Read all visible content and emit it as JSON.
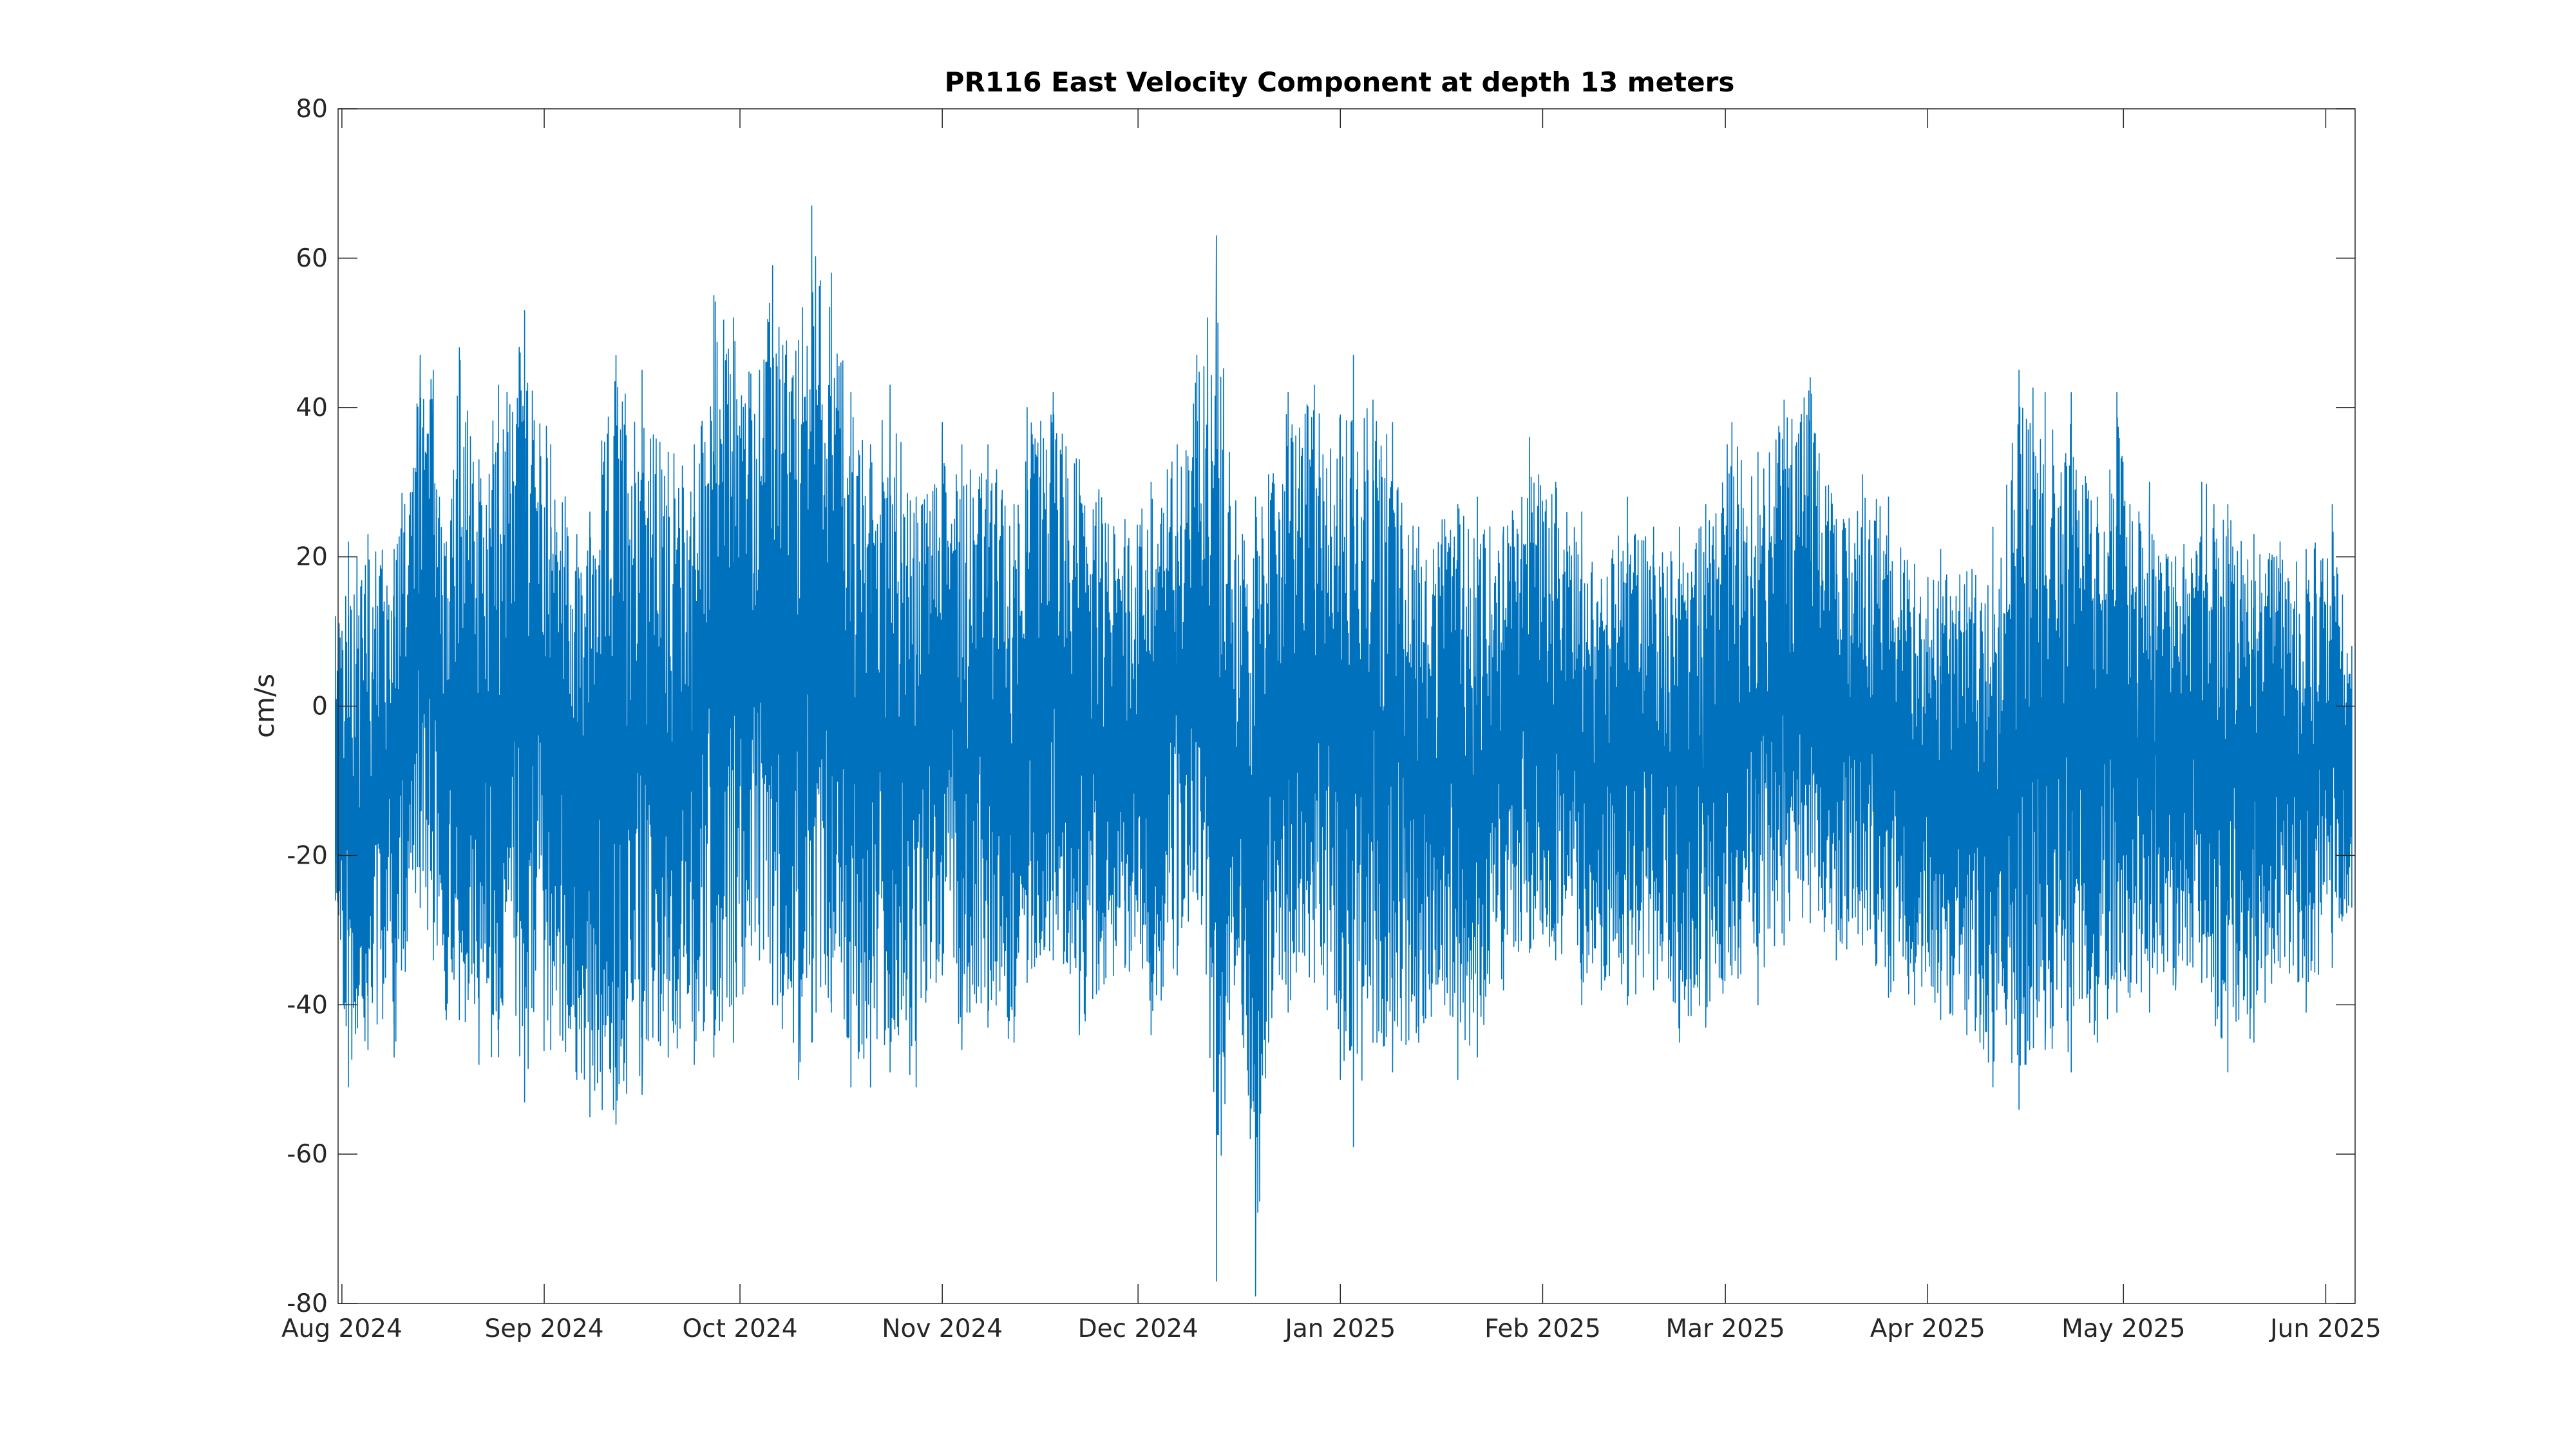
{
  "chart_data": {
    "type": "line",
    "title": "PR116 East Velocity Component at depth 13 meters",
    "xlabel": "",
    "ylabel": "cm/s",
    "ylim": [
      -80,
      80
    ],
    "xlim": [
      "2024-07-31T10:00",
      "2025-06-05T12:00"
    ],
    "x_ticks": [
      {
        "date": "2024-08-01",
        "label": "Aug 2024"
      },
      {
        "date": "2024-09-01",
        "label": "Sep 2024"
      },
      {
        "date": "2024-10-01",
        "label": "Oct 2024"
      },
      {
        "date": "2024-11-01",
        "label": "Nov 2024"
      },
      {
        "date": "2024-12-01",
        "label": "Dec 2024"
      },
      {
        "date": "2025-01-01",
        "label": "Jan 2025"
      },
      {
        "date": "2025-02-01",
        "label": "Feb 2025"
      },
      {
        "date": "2025-03-01",
        "label": "Mar 2025"
      },
      {
        "date": "2025-04-01",
        "label": "Apr 2025"
      },
      {
        "date": "2025-05-01",
        "label": "May 2025"
      },
      {
        "date": "2025-06-01",
        "label": "Jun 2025"
      }
    ],
    "y_ticks": [
      -80,
      -60,
      -40,
      -20,
      0,
      20,
      40,
      60,
      80
    ],
    "grid": false,
    "series": [
      {
        "color": "#0072BD",
        "x": [
          "2024-07-31",
          "2024-08-02",
          "2024-08-05",
          "2024-08-09",
          "2024-08-13",
          "2024-08-15",
          "2024-08-17",
          "2024-08-19",
          "2024-08-22",
          "2024-08-25",
          "2024-08-29",
          "2024-09-02",
          "2024-09-06",
          "2024-09-08",
          "2024-09-12",
          "2024-09-16",
          "2024-09-20",
          "2024-09-24",
          "2024-09-27",
          "2024-09-30",
          "2024-10-04",
          "2024-10-06",
          "2024-10-10",
          "2024-10-12",
          "2024-10-15",
          "2024-10-18",
          "2024-10-21",
          "2024-10-24",
          "2024-10-28",
          "2024-11-01",
          "2024-11-04",
          "2024-11-08",
          "2024-11-12",
          "2024-11-14",
          "2024-11-18",
          "2024-11-22",
          "2024-11-25",
          "2024-11-29",
          "2024-12-03",
          "2024-12-07",
          "2024-12-10",
          "2024-12-13",
          "2024-12-15",
          "2024-12-17",
          "2024-12-19",
          "2024-12-21",
          "2024-12-24",
          "2024-12-28",
          "2025-01-01",
          "2025-01-03",
          "2025-01-06",
          "2025-01-09",
          "2025-01-13",
          "2025-01-17",
          "2025-01-19",
          "2025-01-22",
          "2025-01-26",
          "2025-01-30",
          "2025-02-03",
          "2025-02-07",
          "2025-02-10",
          "2025-02-14",
          "2025-02-18",
          "2025-02-22",
          "2025-02-26",
          "2025-03-02",
          "2025-03-06",
          "2025-03-10",
          "2025-03-14",
          "2025-03-18",
          "2025-03-22",
          "2025-03-26",
          "2025-03-30",
          "2025-04-03",
          "2025-04-07",
          "2025-04-11",
          "2025-04-15",
          "2025-04-19",
          "2025-04-23",
          "2025-04-27",
          "2025-04-30",
          "2025-05-02",
          "2025-05-05",
          "2025-05-09",
          "2025-05-13",
          "2025-05-17",
          "2025-05-21",
          "2025-05-25",
          "2025-05-29",
          "2025-06-02",
          "2025-06-05"
        ],
        "upper": [
          12,
          22,
          23,
          21,
          47,
          45,
          22,
          48,
          33,
          43,
          53,
          35,
          23,
          26,
          47,
          45,
          34,
          35,
          55,
          52,
          45,
          59,
          49,
          67,
          58,
          42,
          35,
          43,
          28,
          38,
          35,
          35,
          27,
          40,
          42,
          33,
          29,
          25,
          30,
          35,
          47,
          63,
          34,
          23,
          28,
          31,
          42,
          43,
          39,
          47,
          41,
          38,
          24,
          25,
          27,
          28,
          24,
          36,
          30,
          26,
          17,
          28,
          24,
          24,
          27,
          38,
          34,
          41,
          44,
          25,
          31,
          28,
          19,
          21,
          18,
          24,
          45,
          42,
          42,
          28,
          42,
          27,
          30,
          20,
          30,
          27,
          23,
          22,
          21,
          27,
          8
        ],
        "lower": [
          -26,
          -51,
          -46,
          -47,
          -27,
          -34,
          -42,
          -42,
          -48,
          -47,
          -53,
          -46,
          -50,
          -55,
          -56,
          -52,
          -47,
          -48,
          -47,
          -45,
          -34,
          -40,
          -50,
          -45,
          -41,
          -51,
          -51,
          -49,
          -51,
          -36,
          -46,
          -43,
          -45,
          -37,
          -34,
          -44,
          -38,
          -35,
          -44,
          -36,
          -25,
          -77,
          -42,
          -44,
          -79,
          -45,
          -41,
          -37,
          -50,
          -59,
          -45,
          -49,
          -45,
          -40,
          -50,
          -47,
          -38,
          -33,
          -34,
          -40,
          -38,
          -40,
          -38,
          -45,
          -43,
          -36,
          -40,
          -32,
          -29,
          -34,
          -32,
          -39,
          -40,
          -42,
          -44,
          -51,
          -54,
          -46,
          -49,
          -45,
          -41,
          -39,
          -41,
          -38,
          -37,
          -49,
          -45,
          -35,
          -41,
          -35,
          -27
        ]
      }
    ]
  }
}
